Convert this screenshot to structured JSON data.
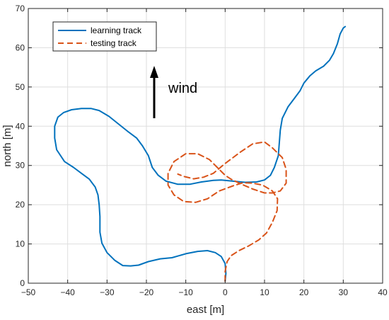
{
  "chart_data": {
    "type": "line",
    "title": "",
    "xlabel": "east  [m]",
    "ylabel": "north  [m]",
    "xlim": [
      -50,
      40
    ],
    "ylim": [
      0,
      70
    ],
    "xticks": [
      -50,
      -40,
      -30,
      -20,
      -10,
      0,
      10,
      20,
      30,
      40
    ],
    "yticks": [
      0,
      10,
      20,
      30,
      40,
      50,
      60,
      70
    ],
    "grid": true,
    "legend_position": "top-left",
    "series": [
      {
        "name": "learning track",
        "color": "#0072BD",
        "style": "solid",
        "x": [
          0,
          0.2,
          0,
          -1,
          -2.5,
          -4.5,
          -7,
          -10,
          -13.5,
          -16.5,
          -19.5,
          -22,
          -24,
          -26,
          -28,
          -30,
          -31.3,
          -31.8,
          -31.8,
          -32,
          -32.3,
          -33,
          -34.5,
          -36.5,
          -38.5,
          -40.8,
          -42.8,
          -43.3,
          -43.3,
          -42.5,
          -41,
          -39,
          -36.5,
          -34,
          -32,
          -29.5,
          -27,
          -24.5,
          -22.5,
          -21,
          -19.5,
          -18.5,
          -17,
          -15,
          -12,
          -9,
          -6,
          -3,
          -1,
          2,
          5,
          8,
          10,
          11.5,
          12.5,
          13.5,
          14,
          14.5,
          16,
          17.5,
          19,
          20,
          21.5,
          23,
          25,
          26.5,
          27.5,
          28.5,
          29.2,
          30,
          30.5
        ],
        "y": [
          0.5,
          2.5,
          5,
          6.8,
          7.8,
          8.3,
          8.1,
          7.5,
          6.5,
          6.2,
          5.5,
          4.6,
          4.4,
          4.5,
          5.8,
          7.8,
          10.2,
          13,
          17,
          20,
          22.5,
          24.5,
          26.5,
          28,
          29.5,
          31,
          34,
          37,
          40,
          42.3,
          43.5,
          44.2,
          44.5,
          44.5,
          44,
          42.5,
          40.5,
          38.5,
          37,
          35,
          32.5,
          29.5,
          27.5,
          26,
          25.2,
          25.2,
          25.8,
          26.2,
          26.3,
          26,
          25.7,
          25.8,
          26.3,
          27.5,
          29.5,
          32.5,
          39,
          42,
          45,
          47,
          49,
          51,
          52.8,
          54.1,
          55.3,
          56.8,
          58.5,
          61,
          63.5,
          65,
          65.4
        ]
      },
      {
        "name": "testing track",
        "color": "#D95319",
        "style": "dashed",
        "x": [
          0,
          0,
          0.5,
          1.5,
          3.5,
          6,
          8.5,
          10.5,
          12,
          13.2,
          13.3,
          12,
          9.5,
          7,
          4.5,
          2,
          -1.5,
          -4.5,
          -7.5,
          -10.5,
          -13,
          -14.5,
          -14.5,
          -13,
          -10,
          -7,
          -4,
          -2,
          0,
          1.5,
          4,
          7,
          10,
          12,
          14,
          15.5,
          15.5,
          14.5,
          12,
          10,
          7,
          4,
          0,
          -3,
          -5.5,
          -8,
          -10.5,
          -12
        ],
        "y": [
          0.5,
          3,
          5.5,
          7,
          8.3,
          9.5,
          11,
          12.8,
          15.5,
          18.5,
          21.5,
          23.5,
          25,
          25.5,
          25.6,
          24.8,
          23.5,
          21.5,
          20.6,
          20.8,
          22.5,
          25,
          28,
          31,
          33,
          33,
          31.5,
          29.5,
          27.5,
          26.5,
          25.3,
          24,
          23,
          23,
          23.5,
          25.5,
          29,
          32,
          34.5,
          36,
          35.5,
          33.5,
          30.5,
          28,
          27,
          26.6,
          27.2,
          27.8
        ]
      }
    ],
    "annotations": [
      {
        "text": "wind",
        "arrow_direction": "up"
      }
    ]
  }
}
